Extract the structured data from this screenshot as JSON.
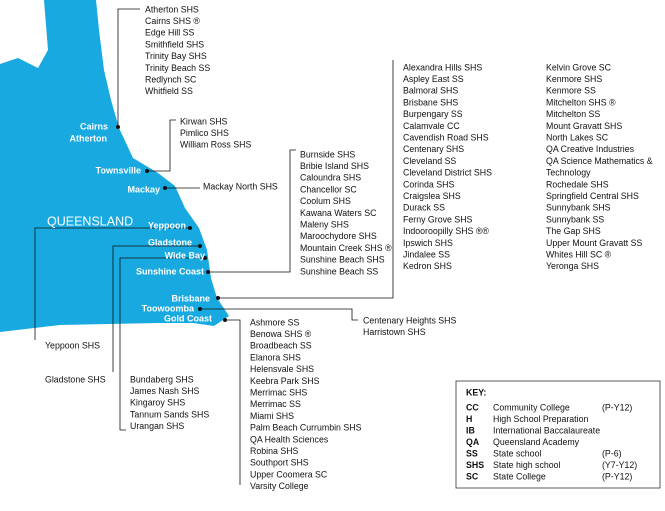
{
  "map": {
    "labels": [
      "Cairns",
      "Atherton",
      "Townsville",
      "Mackay",
      "QUEENSLAND",
      "Yeppoon",
      "Gladstone",
      "Wide Bay",
      "Sunshine Coast",
      "Brisbane",
      "Toowoomba",
      "Gold Coast"
    ]
  },
  "school_groups": [
    {
      "schools": [
        "Atherton SHS",
        "Cairns SHS ®",
        "Edge Hill SS",
        "Smithfield SHS",
        "Trinity Bay SHS",
        "Trinity Beach SS",
        "Redlynch SC",
        "Whitfield SS"
      ]
    },
    {
      "schools": [
        "Kirwan SHS",
        "Pimlico SHS",
        "William Ross SHS"
      ]
    },
    {
      "schools": [
        "Mackay North SHS"
      ]
    },
    {
      "schools": [
        "Burnside SHS",
        "Bribie Island SHS",
        "Caloundra SHS",
        "Chancellor SC",
        "Coolum SHS",
        "Kawana Waters SC",
        "Maleny SHS",
        "Maroochydore SHS",
        "Mountain Creek SHS ®",
        "Sunshine Beach SHS",
        "Sunshine Beach SS"
      ]
    },
    {
      "schools": [
        "Alexandra Hills SHS",
        "Aspley East SS",
        "Balmoral SHS",
        "Brisbane SHS",
        "Burpengary SS",
        "Calamvale CC",
        "Cavendish Road SHS",
        "Centenary SHS",
        "Cleveland SS",
        "Cleveland District SHS",
        "Corinda SHS",
        "Craigslea SHS",
        "Durack SS",
        "Ferny Grove SHS",
        "Indooroopilly SHS ®®",
        "Ipswich SHS",
        "Jindalee SS",
        "Kedron SHS"
      ]
    },
    {
      "schools": [
        "Kelvin Grove SC",
        "Kenmore SHS",
        "Kenmore SS",
        "Mitchelton SHS ®",
        "Mitchelton SS",
        "Mount Gravatt SHS",
        "North Lakes SC",
        "QA Creative Industries",
        "QA Science Mathematics &",
        "Technology",
        "Rochedale SHS",
        "Springfield Central SHS",
        "Sunnybank SHS",
        "Sunnybank SS",
        "The Gap SHS",
        "Upper Mount Gravatt SS",
        "Whites Hill SC ®",
        "Yeronga SHS"
      ]
    },
    {
      "schools": [
        "Centenary Heights SHS",
        "Harristown SHS"
      ]
    },
    {
      "schools": [
        "Ashmore SS",
        "Benowa SHS ®",
        "Broadbeach SS",
        "Elanora SHS",
        "Helensvale SHS",
        "Keebra Park SHS",
        "Merrimac SHS",
        "Merrimac SS",
        "Miami SHS",
        "Palm Beach Currumbin SHS",
        "QA Health Sciences",
        "Robina SHS",
        "Southport SHS",
        "Upper Coomera SC",
        "Varsity College"
      ]
    },
    {
      "schools": [
        "Yeppoon SHS"
      ]
    },
    {
      "schools": [
        "Gladstone SHS"
      ]
    },
    {
      "schools": [
        "Bundaberg SHS",
        "James Nash SHS",
        "Kingaroy SHS",
        "Tannum Sands SHS",
        "Urangan SHS"
      ]
    }
  ],
  "key": {
    "title": "KEY:",
    "rows": [
      {
        "code": "CC",
        "name": "Community College",
        "years": "(P-Y12)"
      },
      {
        "code": "H",
        "name": "High School Preparation"
      },
      {
        "code": "IB",
        "name": "International Baccalaureate"
      },
      {
        "code": "QA",
        "name": "Queensland Academy"
      },
      {
        "code": "SS",
        "name": "State school",
        "years": "(P-6)"
      },
      {
        "code": "SHS",
        "name": "State high school",
        "years": "(Y7-Y12)"
      },
      {
        "code": "SC",
        "name": "State College",
        "years": "(P-Y12)"
      }
    ]
  }
}
